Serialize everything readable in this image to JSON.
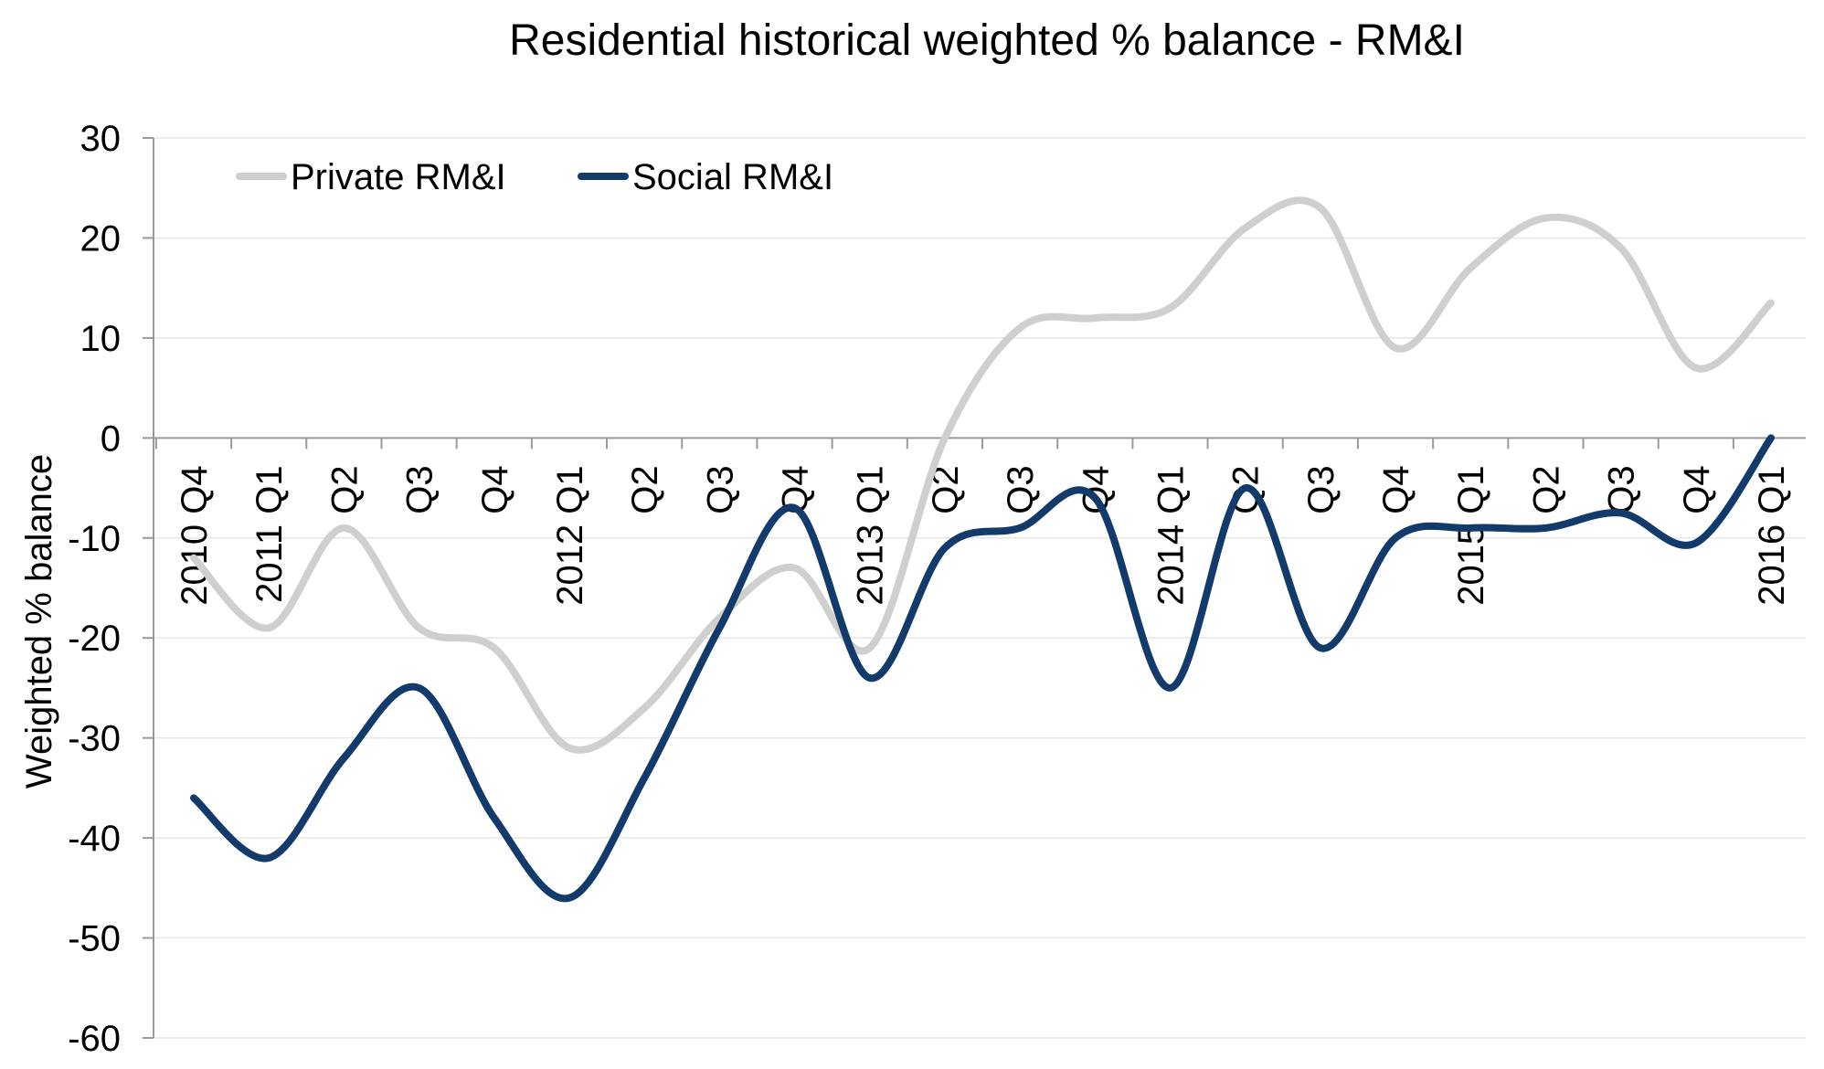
{
  "chart_data": {
    "type": "line",
    "title": "Residential historical weighted % balance - RM&I",
    "xlabel": "",
    "ylabel": "Weighted % balance",
    "ylim": [
      -60,
      30
    ],
    "yticks": [
      30,
      20,
      10,
      0,
      -10,
      -20,
      -30,
      -40,
      -50,
      -60
    ],
    "grid": true,
    "legend_position": "top-left",
    "categories": [
      "2010 Q4",
      "2011 Q1",
      "Q2",
      "Q3",
      "Q4",
      "2012 Q1",
      "Q2",
      "Q3",
      "Q4",
      "2013 Q1",
      "Q2",
      "Q3",
      "Q4",
      "2014 Q1",
      "Q2",
      "Q3",
      "Q4",
      "2015 Q1",
      "Q2",
      "Q3",
      "Q4",
      "2016 Q1"
    ],
    "series": [
      {
        "name": "Private RM&I",
        "color": "#cfcfcf",
        "values": [
          -12,
          -19,
          -9,
          -19,
          -21,
          -31,
          -27,
          -18,
          -13,
          -21,
          0,
          11,
          12,
          13,
          21,
          23,
          9,
          17,
          22,
          19,
          7,
          13.5
        ]
      },
      {
        "name": "Social RM&I",
        "color": "#123a6b",
        "values": [
          -36,
          -42,
          -32,
          -25,
          -38,
          -46,
          -34,
          -19,
          -7,
          -24,
          -11,
          -9,
          -6,
          -25,
          -5,
          -21,
          -10,
          -9,
          -9,
          -7.5,
          -10.5,
          0
        ]
      }
    ]
  }
}
